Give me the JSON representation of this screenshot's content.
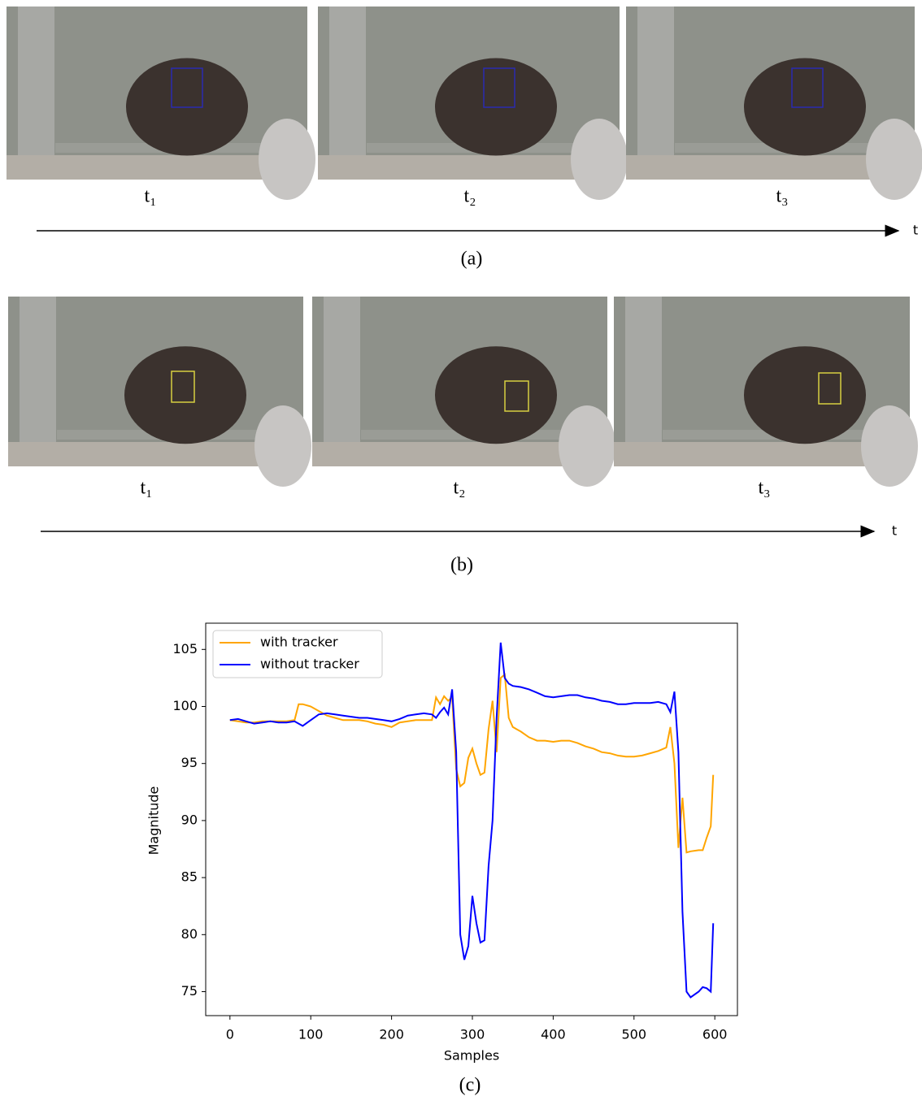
{
  "panel_a": {
    "frames": [
      {
        "label": "t₁"
      },
      {
        "label": "t₂"
      },
      {
        "label": "t₃"
      }
    ],
    "axis_label": "t",
    "caption": "(a)"
  },
  "panel_b": {
    "frames": [
      {
        "label": "t₁"
      },
      {
        "label": "t₂"
      },
      {
        "label": "t₃"
      }
    ],
    "axis_label": "t",
    "caption": "(b)"
  },
  "chart_data": {
    "type": "line",
    "caption": "(c)",
    "x_label": "Samples",
    "y_label": "Magnitude",
    "x": [
      0,
      10,
      20,
      30,
      40,
      50,
      60,
      70,
      80,
      85,
      90,
      100,
      110,
      120,
      130,
      140,
      150,
      160,
      170,
      180,
      190,
      200,
      210,
      220,
      230,
      240,
      250,
      255,
      260,
      265,
      270,
      275,
      280,
      285,
      290,
      295,
      300,
      305,
      310,
      315,
      320,
      325,
      330,
      335,
      340,
      345,
      350,
      360,
      370,
      380,
      390,
      400,
      410,
      420,
      430,
      440,
      450,
      460,
      470,
      480,
      490,
      500,
      510,
      520,
      530,
      540,
      545,
      550,
      555,
      560,
      565,
      570,
      580,
      585,
      590,
      595,
      598
    ],
    "series": [
      {
        "name": "with tracker",
        "color": "#ffa500",
        "values": [
          98.8,
          98.7,
          98.6,
          98.6,
          98.7,
          98.7,
          98.7,
          98.7,
          98.8,
          100.2,
          100.2,
          100.0,
          99.6,
          99.2,
          99.0,
          98.8,
          98.8,
          98.8,
          98.7,
          98.5,
          98.4,
          98.2,
          98.6,
          98.7,
          98.8,
          98.8,
          98.8,
          100.8,
          100.2,
          100.9,
          100.5,
          100.8,
          94.5,
          93,
          93.3,
          95.5,
          96.3,
          95,
          94,
          94.2,
          98,
          100.5,
          96,
          102.5,
          102.8,
          99,
          98.2,
          97.8,
          97.3,
          97.0,
          97.0,
          96.9,
          97.0,
          97.0,
          96.8,
          96.5,
          96.3,
          96.0,
          95.9,
          95.7,
          95.6,
          95.6,
          95.7,
          95.9,
          96.1,
          96.4,
          98.2,
          95,
          87.6,
          92,
          87.2,
          87.3,
          87.4,
          87.4,
          88.5,
          89.5,
          94
        ]
      },
      {
        "name": "without tracker",
        "color": "#0000ff",
        "values": [
          98.8,
          98.9,
          98.7,
          98.5,
          98.6,
          98.7,
          98.6,
          98.6,
          98.7,
          98.5,
          98.3,
          98.8,
          99.3,
          99.4,
          99.3,
          99.2,
          99.1,
          99.0,
          99.0,
          98.9,
          98.8,
          98.7,
          98.9,
          99.2,
          99.3,
          99.4,
          99.3,
          99.0,
          99.5,
          99.9,
          99.3,
          101.5,
          96,
          80,
          77.8,
          79,
          83.4,
          81,
          79.3,
          79.5,
          86,
          90,
          99,
          105.6,
          102.5,
          102.0,
          101.8,
          101.7,
          101.5,
          101.2,
          100.9,
          100.8,
          100.9,
          101.0,
          101.0,
          100.8,
          100.7,
          100.5,
          100.4,
          100.2,
          100.2,
          100.3,
          100.3,
          100.3,
          100.4,
          100.2,
          99.5,
          101.3,
          96,
          82,
          75,
          74.5,
          75,
          75.4,
          75.3,
          75,
          81
        ]
      }
    ],
    "xlim": [
      -30,
      628
    ],
    "ylim": [
      72.9,
      107.3
    ],
    "xticks": [
      0,
      100,
      200,
      300,
      400,
      500,
      600
    ],
    "yticks": [
      75,
      80,
      85,
      90,
      95,
      100,
      105
    ],
    "legend": "upper left"
  }
}
